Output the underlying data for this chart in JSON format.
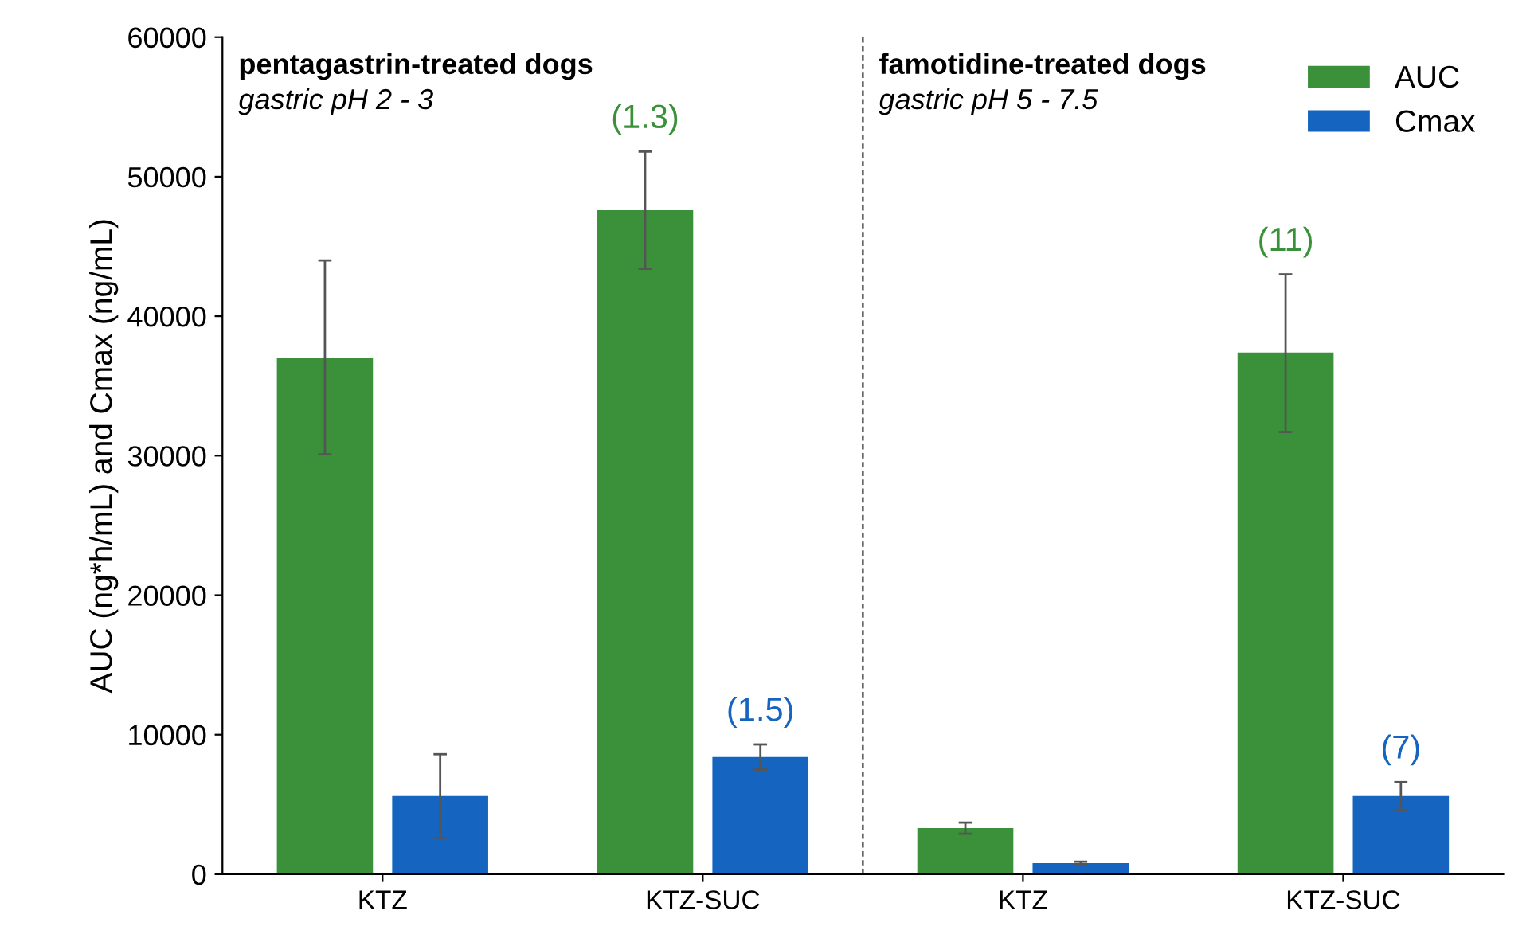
{
  "chart_data": {
    "type": "bar",
    "ylabel": "AUC (ng*h/mL) and Cmax (ng/mL)",
    "categories": [
      "KTZ",
      "KTZ-SUC",
      "KTZ",
      "KTZ-SUC"
    ],
    "series": [
      {
        "name": "AUC",
        "color": "#3a913a",
        "values": [
          37000,
          47600,
          3300,
          37400
        ],
        "errors": [
          [
            30100,
            44000
          ],
          [
            43400,
            51800
          ],
          [
            2900,
            3700
          ],
          [
            31700,
            43000
          ]
        ]
      },
      {
        "name": "Cmax",
        "color": "#1565c0",
        "values": [
          5600,
          8400,
          800,
          5600
        ],
        "errors": [
          [
            2600,
            8600
          ],
          [
            7500,
            9300
          ],
          [
            700,
            900
          ],
          [
            4600,
            6600
          ]
        ]
      }
    ],
    "ylim": [
      0,
      60000
    ],
    "yticks": [
      0,
      10000,
      20000,
      30000,
      40000,
      50000,
      60000
    ],
    "annotations": [
      "pentagastrin-treated dogs",
      "gastric pH 2 - 3",
      "famotidine-treated dogs",
      "gastric pH 5 - 7.5",
      "(1.3)",
      "(1.5)",
      "(11)",
      "(7)"
    ],
    "legend": "top right",
    "grid": false
  }
}
